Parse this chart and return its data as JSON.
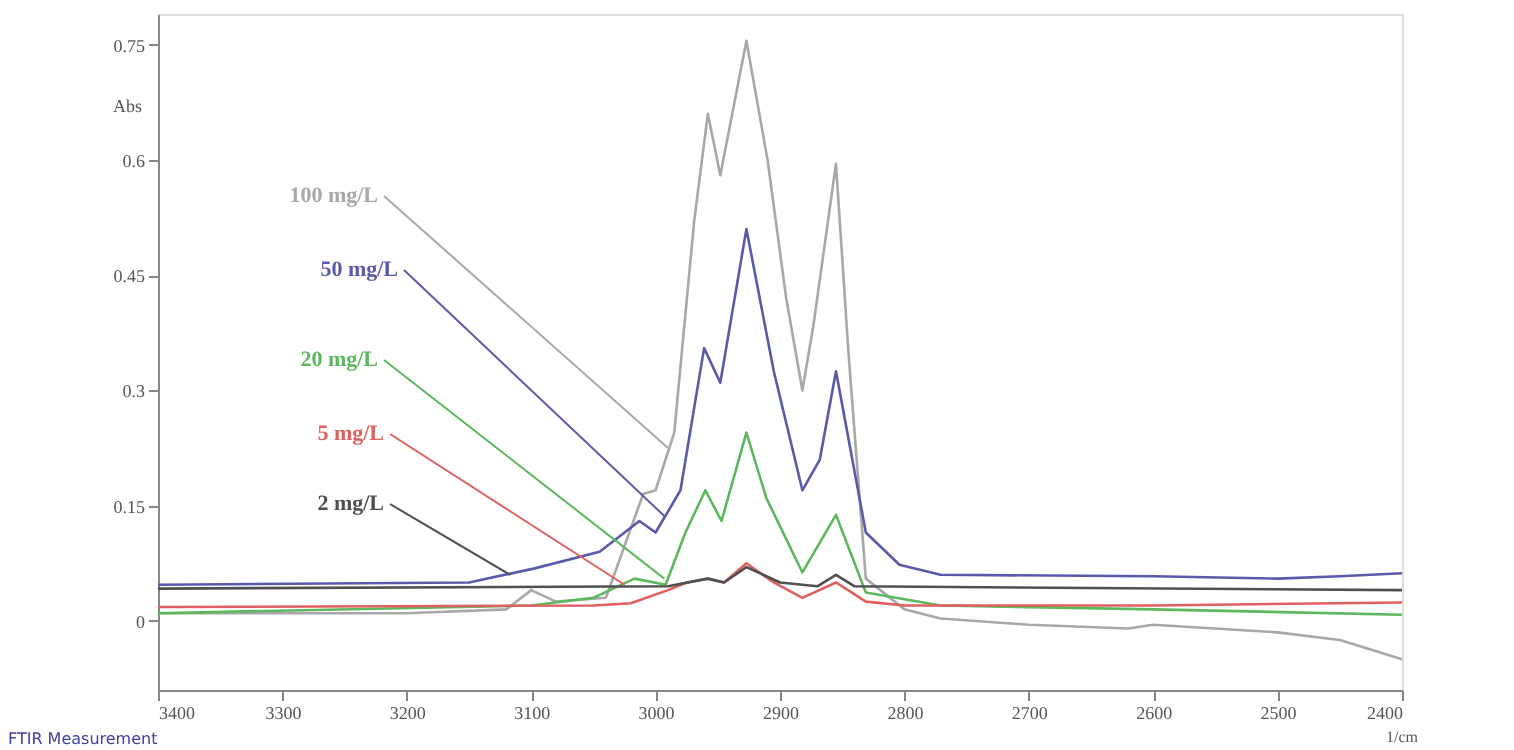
{
  "chart_data": {
    "type": "line",
    "ylabel": "Abs",
    "xlabel": "1/cm",
    "xlim": [
      3400,
      2400
    ],
    "ylim": [
      -0.09,
      0.79
    ],
    "xticks": [
      3400,
      3300,
      3200,
      3100,
      3000,
      2900,
      2800,
      2700,
      2600,
      2500,
      2400
    ],
    "yticks": [
      0,
      0.15,
      0.3,
      0.45,
      0.6,
      0.75
    ],
    "grid": false,
    "marker": "none",
    "line_style": "solid",
    "series": [
      {
        "color": "#a8a8a8",
        "x": [
          3400,
          3200,
          3120,
          3100,
          3080,
          3040,
          3010,
          3000,
          2985,
          2969,
          2958,
          2948,
          2927,
          2910,
          2895,
          2882,
          2873,
          2855,
          2845,
          2831,
          2800,
          2771,
          2700,
          2620,
          2600,
          2500,
          2450,
          2400
        ],
        "values": [
          0.01,
          0.01,
          0.015,
          0.04,
          0.025,
          0.03,
          0.165,
          0.17,
          0.245,
          0.52,
          0.66,
          0.58,
          0.755,
          0.6,
          0.42,
          0.3,
          0.386,
          0.595,
          0.35,
          0.055,
          0.015,
          0.003,
          -0.005,
          -0.01,
          -0.005,
          -0.015,
          -0.025,
          -0.05
        ]
      },
      {
        "color": "#5a5aaa",
        "x": [
          3400,
          3150,
          3098,
          3045,
          3013,
          3000,
          2980,
          2961,
          2948,
          2927,
          2905,
          2882,
          2868,
          2855,
          2831,
          2804,
          2771,
          2600,
          2500,
          2450,
          2400
        ],
        "values": [
          0.047,
          0.05,
          0.068,
          0.09,
          0.13,
          0.115,
          0.17,
          0.355,
          0.31,
          0.51,
          0.325,
          0.17,
          0.21,
          0.325,
          0.115,
          0.073,
          0.06,
          0.058,
          0.055,
          0.058,
          0.062
        ]
      },
      {
        "color": "#5cb85c",
        "x": [
          3400,
          3100,
          3050,
          3017,
          2992,
          2976,
          2960,
          2947,
          2927,
          2911,
          2882,
          2855,
          2831,
          2771,
          2600,
          2400
        ],
        "values": [
          0.01,
          0.02,
          0.03,
          0.055,
          0.047,
          0.115,
          0.17,
          0.13,
          0.245,
          0.16,
          0.063,
          0.138,
          0.037,
          0.02,
          0.015,
          0.008
        ]
      },
      {
        "color": "#e06060",
        "x": [
          3400,
          3050,
          3020,
          2990,
          2975,
          2958,
          2945,
          2927,
          2905,
          2882,
          2855,
          2831,
          2800,
          2600,
          2400
        ],
        "values": [
          0.018,
          0.02,
          0.023,
          0.04,
          0.05,
          0.055,
          0.05,
          0.075,
          0.05,
          0.03,
          0.05,
          0.025,
          0.02,
          0.02,
          0.024
        ]
      },
      {
        "color": "#505050",
        "x": [
          3400,
          2990,
          2958,
          2945,
          2927,
          2900,
          2870,
          2855,
          2840,
          2400
        ],
        "values": [
          0.042,
          0.045,
          0.055,
          0.05,
          0.07,
          0.05,
          0.045,
          0.06,
          0.045,
          0.04
        ]
      }
    ],
    "annotations": [
      {
        "text": "100 mg/L",
        "x": 2990,
        "y": 0.225
      },
      {
        "text": "50 mg/L",
        "x": 2992,
        "y": 0.135
      },
      {
        "text": "20 mg/L",
        "x": 2993,
        "y": 0.055
      },
      {
        "text": "5 mg/L",
        "x": 3025,
        "y": 0.047
      },
      {
        "text": "2 mg/L",
        "x": 3117,
        "y": 0.06
      },
      "FTIR Measurement"
    ]
  }
}
